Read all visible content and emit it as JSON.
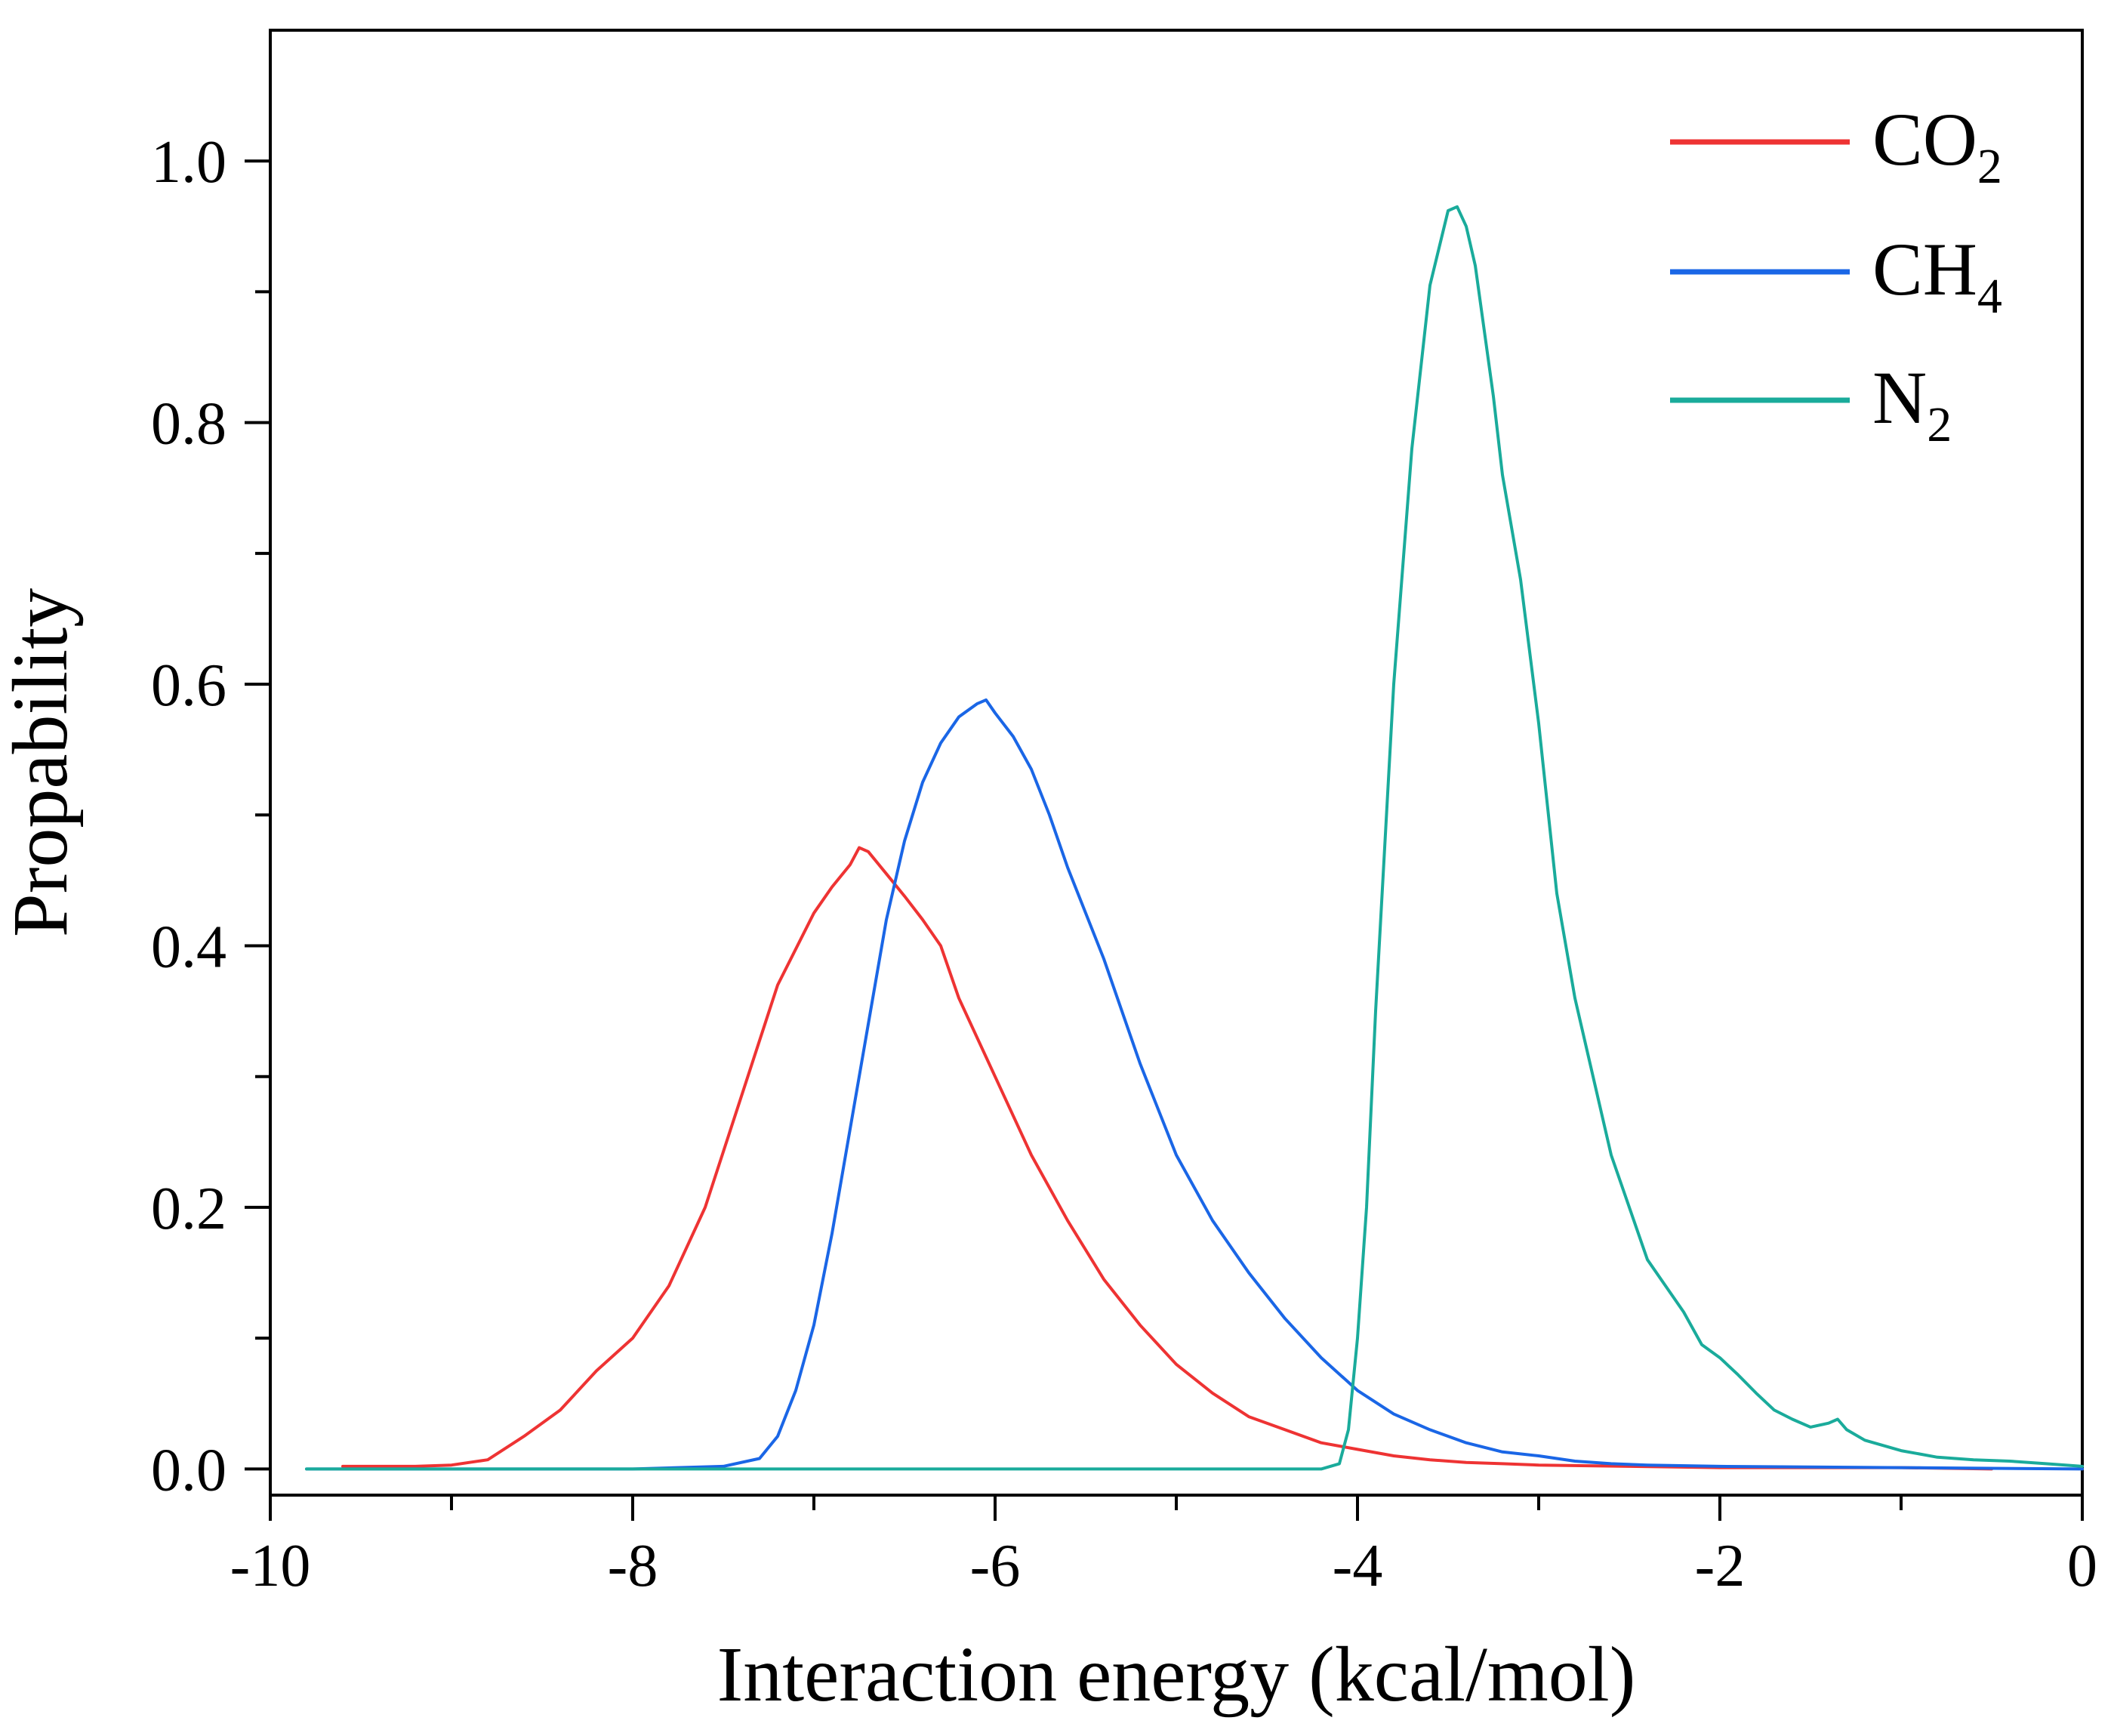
{
  "chart_data": {
    "type": "line",
    "title": "",
    "xlabel": "Interaction energy (kcal/mol)",
    "ylabel": "Propability",
    "xlim": [
      -10,
      0
    ],
    "ylim": [
      -0.02,
      1.1
    ],
    "x_ticks": [
      -10,
      -8,
      -6,
      -4,
      -2,
      0
    ],
    "x_tick_labels": [
      "-10",
      "-8",
      "-6",
      "-4",
      "-2",
      "0"
    ],
    "y_ticks": [
      0.0,
      0.2,
      0.4,
      0.6,
      0.8,
      1.0
    ],
    "y_tick_labels": [
      "0.0",
      "0.2",
      "0.4",
      "0.6",
      "0.8",
      "1.0"
    ],
    "legend_position": "top-right",
    "series": [
      {
        "name": "CO2",
        "label_main": "CO",
        "label_sub": "2",
        "color": "#ee3333",
        "points": [
          [
            -9.6,
            0.002
          ],
          [
            -9.2,
            0.002
          ],
          [
            -9.0,
            0.003
          ],
          [
            -8.8,
            0.007
          ],
          [
            -8.6,
            0.025
          ],
          [
            -8.4,
            0.045
          ],
          [
            -8.2,
            0.075
          ],
          [
            -8.0,
            0.1
          ],
          [
            -7.8,
            0.14
          ],
          [
            -7.6,
            0.2
          ],
          [
            -7.4,
            0.285
          ],
          [
            -7.2,
            0.37
          ],
          [
            -7.0,
            0.425
          ],
          [
            -6.9,
            0.445
          ],
          [
            -6.8,
            0.462
          ],
          [
            -6.75,
            0.475
          ],
          [
            -6.7,
            0.472
          ],
          [
            -6.6,
            0.455
          ],
          [
            -6.5,
            0.438
          ],
          [
            -6.4,
            0.42
          ],
          [
            -6.3,
            0.4
          ],
          [
            -6.2,
            0.36
          ],
          [
            -6.0,
            0.3
          ],
          [
            -5.8,
            0.24
          ],
          [
            -5.6,
            0.19
          ],
          [
            -5.4,
            0.145
          ],
          [
            -5.2,
            0.11
          ],
          [
            -5.0,
            0.08
          ],
          [
            -4.8,
            0.058
          ],
          [
            -4.6,
            0.04
          ],
          [
            -4.4,
            0.03
          ],
          [
            -4.2,
            0.02
          ],
          [
            -4.0,
            0.015
          ],
          [
            -3.8,
            0.01
          ],
          [
            -3.6,
            0.007
          ],
          [
            -3.4,
            0.005
          ],
          [
            -3.2,
            0.004
          ],
          [
            -3.0,
            0.003
          ],
          [
            -2.5,
            0.002
          ],
          [
            -2.0,
            0.001
          ],
          [
            -1.0,
            0.001
          ],
          [
            -0.5,
            0.0
          ]
        ]
      },
      {
        "name": "CH4",
        "label_main": "CH",
        "label_sub": "4",
        "color": "#1a66e6",
        "points": [
          [
            -9.8,
            0.0
          ],
          [
            -8.0,
            0.0
          ],
          [
            -7.5,
            0.002
          ],
          [
            -7.3,
            0.008
          ],
          [
            -7.2,
            0.025
          ],
          [
            -7.1,
            0.06
          ],
          [
            -7.0,
            0.11
          ],
          [
            -6.9,
            0.18
          ],
          [
            -6.8,
            0.26
          ],
          [
            -6.7,
            0.34
          ],
          [
            -6.6,
            0.42
          ],
          [
            -6.5,
            0.48
          ],
          [
            -6.4,
            0.525
          ],
          [
            -6.3,
            0.555
          ],
          [
            -6.2,
            0.575
          ],
          [
            -6.1,
            0.585
          ],
          [
            -6.05,
            0.588
          ],
          [
            -6.0,
            0.578
          ],
          [
            -5.9,
            0.56
          ],
          [
            -5.8,
            0.535
          ],
          [
            -5.7,
            0.5
          ],
          [
            -5.6,
            0.46
          ],
          [
            -5.4,
            0.39
          ],
          [
            -5.2,
            0.31
          ],
          [
            -5.0,
            0.24
          ],
          [
            -4.8,
            0.19
          ],
          [
            -4.6,
            0.15
          ],
          [
            -4.4,
            0.115
          ],
          [
            -4.2,
            0.085
          ],
          [
            -4.0,
            0.06
          ],
          [
            -3.8,
            0.042
          ],
          [
            -3.6,
            0.03
          ],
          [
            -3.4,
            0.02
          ],
          [
            -3.2,
            0.013
          ],
          [
            -3.0,
            0.01
          ],
          [
            -2.8,
            0.006
          ],
          [
            -2.6,
            0.004
          ],
          [
            -2.4,
            0.003
          ],
          [
            -2.0,
            0.002
          ],
          [
            -1.0,
            0.001
          ],
          [
            0.0,
            0.0
          ]
        ]
      },
      {
        "name": "N2",
        "label_main": "N",
        "label_sub": "2",
        "color": "#1aab9b",
        "points": [
          [
            -9.8,
            0.0
          ],
          [
            -4.2,
            0.0
          ],
          [
            -4.1,
            0.004
          ],
          [
            -4.05,
            0.03
          ],
          [
            -4.0,
            0.1
          ],
          [
            -3.95,
            0.2
          ],
          [
            -3.9,
            0.35
          ],
          [
            -3.8,
            0.6
          ],
          [
            -3.7,
            0.78
          ],
          [
            -3.6,
            0.905
          ],
          [
            -3.5,
            0.962
          ],
          [
            -3.45,
            0.965
          ],
          [
            -3.4,
            0.95
          ],
          [
            -3.35,
            0.92
          ],
          [
            -3.3,
            0.87
          ],
          [
            -3.25,
            0.82
          ],
          [
            -3.2,
            0.76
          ],
          [
            -3.1,
            0.68
          ],
          [
            -3.0,
            0.57
          ],
          [
            -2.9,
            0.44
          ],
          [
            -2.8,
            0.36
          ],
          [
            -2.7,
            0.3
          ],
          [
            -2.6,
            0.24
          ],
          [
            -2.5,
            0.2
          ],
          [
            -2.4,
            0.16
          ],
          [
            -2.3,
            0.14
          ],
          [
            -2.2,
            0.12
          ],
          [
            -2.1,
            0.095
          ],
          [
            -2.0,
            0.085
          ],
          [
            -1.9,
            0.072
          ],
          [
            -1.8,
            0.058
          ],
          [
            -1.7,
            0.045
          ],
          [
            -1.6,
            0.038
          ],
          [
            -1.5,
            0.032
          ],
          [
            -1.4,
            0.035
          ],
          [
            -1.35,
            0.038
          ],
          [
            -1.3,
            0.03
          ],
          [
            -1.2,
            0.022
          ],
          [
            -1.0,
            0.014
          ],
          [
            -0.8,
            0.009
          ],
          [
            -0.6,
            0.007
          ],
          [
            -0.4,
            0.006
          ],
          [
            -0.2,
            0.004
          ],
          [
            0.0,
            0.002
          ]
        ]
      }
    ]
  }
}
